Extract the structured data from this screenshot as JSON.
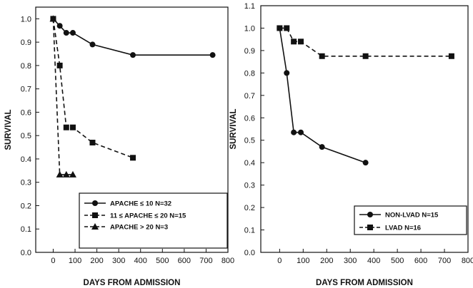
{
  "chart_data": [
    {
      "type": "line",
      "title": "",
      "xlabel": "DAYS FROM ADMISSION",
      "ylabel": "SURVIVAL",
      "xlim": [
        -80,
        800
      ],
      "ylim": [
        0.0,
        1.05
      ],
      "x_ticks": [
        0,
        100,
        200,
        300,
        400,
        500,
        600,
        700,
        800
      ],
      "x_tick_labels": [
        "0",
        "100",
        "200",
        "300",
        "400",
        "500",
        "600",
        "700",
        "800"
      ],
      "y_ticks": [
        0.0,
        0.1,
        0.2,
        0.3,
        0.4,
        0.5,
        0.6,
        0.7,
        0.8,
        0.9,
        1.0
      ],
      "y_tick_labels": [
        "0.0",
        "0.1",
        "0.2",
        "0.3",
        "0.4",
        "0.5",
        "0.6",
        "0.7",
        "0.8",
        "0.9",
        "1.0"
      ],
      "legend_position": "bottom-right",
      "series": [
        {
          "name": "APACHE ≤ 10 N=32",
          "marker": "circle",
          "dash": "solid",
          "x": [
            0,
            30,
            60,
            90,
            180,
            365,
            730
          ],
          "y": [
            1.0,
            0.97,
            0.94,
            0.94,
            0.89,
            0.845,
            0.845
          ]
        },
        {
          "name": "11 ≤ APACHE ≤ 20 N=15",
          "marker": "square",
          "dash": "dashed",
          "x": [
            0,
            30,
            60,
            90,
            180,
            365
          ],
          "y": [
            1.0,
            0.8,
            0.535,
            0.535,
            0.47,
            0.405
          ]
        },
        {
          "name": "APACHE > 20 N=3",
          "marker": "triangle",
          "dash": "dashed",
          "x": [
            0,
            30,
            60,
            90
          ],
          "y": [
            1.0,
            0.333,
            0.333,
            0.333
          ]
        }
      ]
    },
    {
      "type": "line",
      "title": "",
      "xlabel": "DAYS FROM ADMISSION",
      "ylabel": "SURVIVAL",
      "xlim": [
        -80,
        800
      ],
      "ylim": [
        0.0,
        1.1
      ],
      "x_ticks": [
        0,
        100,
        200,
        300,
        400,
        500,
        600,
        700,
        800
      ],
      "x_tick_labels": [
        "0",
        "100",
        "200",
        "300",
        "400",
        "500",
        "600",
        "700",
        "800"
      ],
      "y_ticks": [
        0.0,
        0.1,
        0.2,
        0.3,
        0.4,
        0.5,
        0.6,
        0.7,
        0.8,
        0.9,
        1.0,
        1.1
      ],
      "y_tick_labels": [
        "0.0",
        "0.1",
        "0.2",
        "0.3",
        "0.4",
        "0.5",
        "0.6",
        "0.7",
        "0.8",
        "0.9",
        "1.0",
        "1.1"
      ],
      "legend_position": "bottom-right",
      "series": [
        {
          "name": "NON-LVAD N=15",
          "marker": "circle",
          "dash": "solid",
          "x": [
            0,
            30,
            60,
            90,
            180,
            365
          ],
          "y": [
            1.0,
            0.8,
            0.535,
            0.535,
            0.47,
            0.4
          ]
        },
        {
          "name": "LVAD N=16",
          "marker": "square",
          "dash": "dashed",
          "x": [
            0,
            30,
            60,
            90,
            180,
            365,
            730
          ],
          "y": [
            1.0,
            1.0,
            0.94,
            0.94,
            0.875,
            0.875,
            0.875
          ]
        }
      ]
    }
  ]
}
